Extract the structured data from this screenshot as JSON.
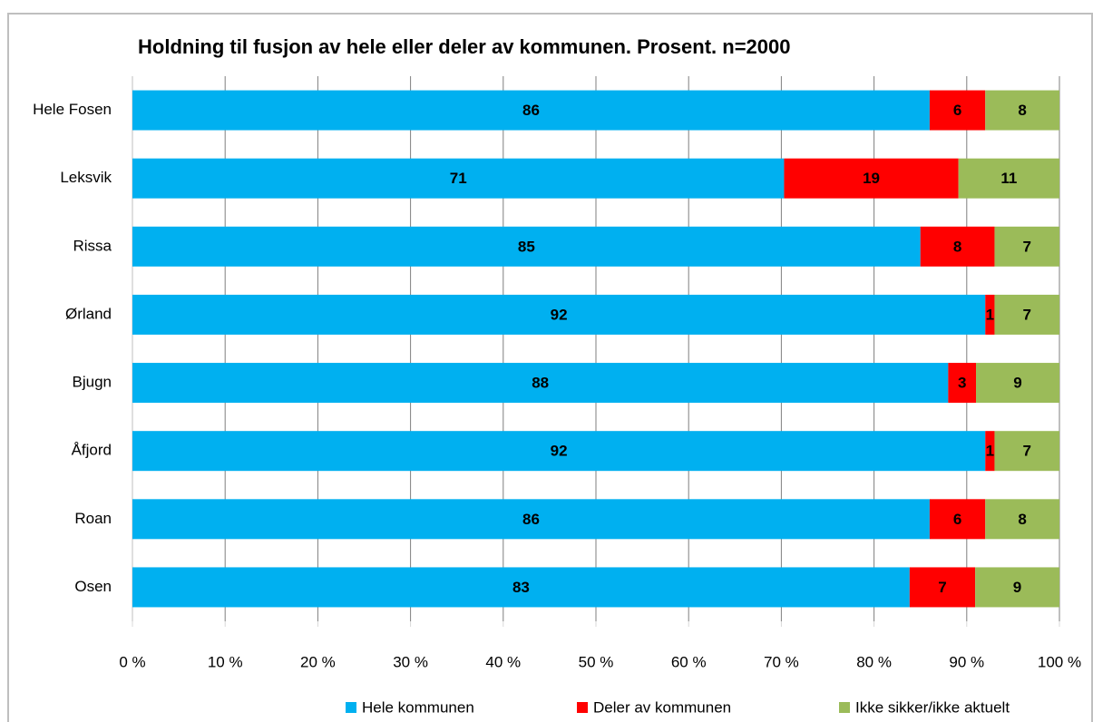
{
  "chart_data": {
    "type": "stacked_percent_bar",
    "orientation": "horizontal",
    "title": "Holdning til fusjon av hele eller deler av kommunen. Prosent. n=2000",
    "categories": [
      "Hele Fosen",
      "Leksvik",
      "Rissa",
      "Ørland",
      "Bjugn",
      "Åfjord",
      "Roan",
      "Osen"
    ],
    "series": [
      {
        "name": "Hele kommunen",
        "color": "#00b0f0",
        "values": [
          86,
          71,
          85,
          92,
          88,
          92,
          86,
          83
        ]
      },
      {
        "name": "Deler av kommunen",
        "color": "#ff0000",
        "values": [
          6,
          19,
          8,
          1,
          3,
          1,
          6,
          7
        ]
      },
      {
        "name": "Ikke sikker/ikke aktuelt",
        "color": "#9bbb59",
        "values": [
          8,
          11,
          7,
          7,
          9,
          7,
          8,
          9
        ]
      }
    ],
    "xlim": [
      0,
      100
    ],
    "xticks": [
      {
        "value": 0,
        "label": "0 %"
      },
      {
        "value": 10,
        "label": "10 %"
      },
      {
        "value": 20,
        "label": "20 %"
      },
      {
        "value": 30,
        "label": "30 %"
      },
      {
        "value": 40,
        "label": "40 %"
      },
      {
        "value": 50,
        "label": "50 %"
      },
      {
        "value": 60,
        "label": "60 %"
      },
      {
        "value": 70,
        "label": "70 %"
      },
      {
        "value": 80,
        "label": "80 %"
      },
      {
        "value": 90,
        "label": "90 %"
      },
      {
        "value": 100,
        "label": "100 %"
      }
    ],
    "grid": true,
    "legend": "bottom"
  }
}
